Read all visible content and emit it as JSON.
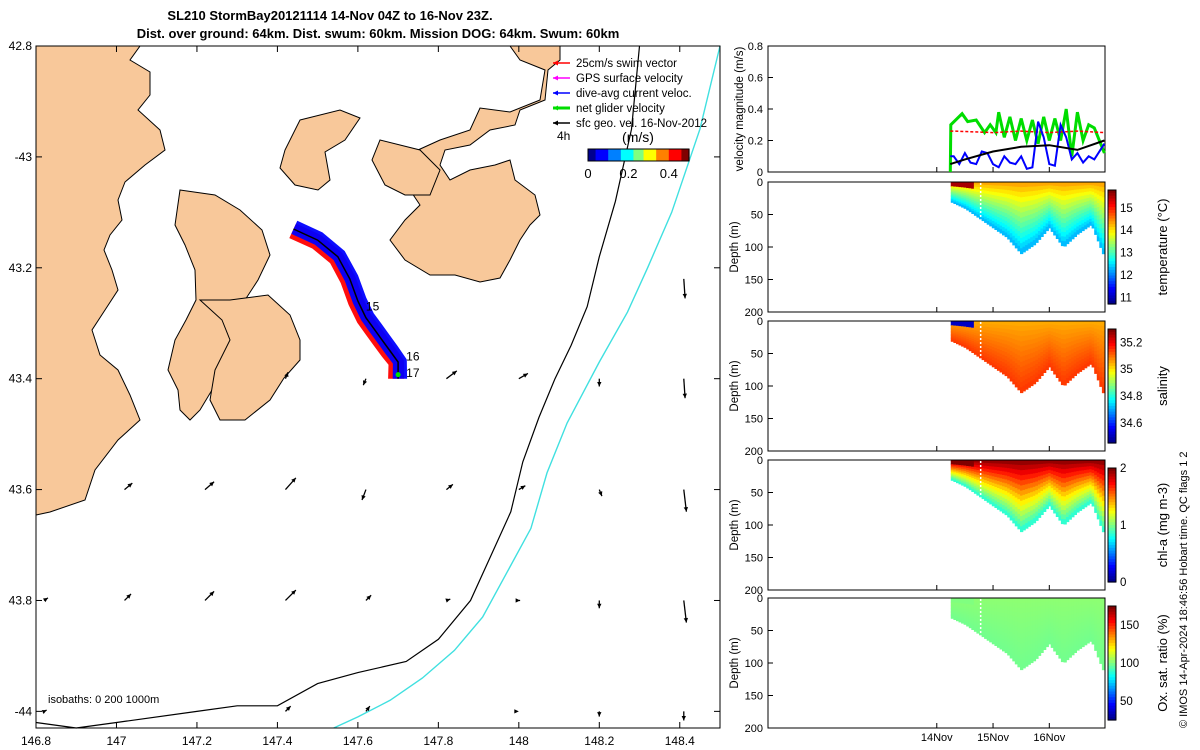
{
  "header": {
    "title_line1": "SL210 StormBay20121114 14-Nov 04Z to 16-Nov 23Z.",
    "title_line2": "Dist. over ground: 64km. Dist. swum: 60km. Mission DOG: 64km. Swum: 60km"
  },
  "colors": {
    "land": "#f8c89a",
    "sea": "#ffffff",
    "track_swim": "#ff0000",
    "track_gps": "#ff00ff",
    "track_current": "#0000ff",
    "track_net": "#00dd00",
    "geo_vector": "#000000",
    "isobath_200": "#000000",
    "isobath_1000": "#40e0e0"
  },
  "chart_data": [
    {
      "type": "scatter",
      "name": "map",
      "xlim": [
        146.8,
        148.5
      ],
      "ylim": [
        -44.03,
        -42.8
      ],
      "x_ticks": [
        146.8,
        147,
        147.2,
        147.4,
        147.6,
        147.8,
        148,
        148.2,
        148.4
      ],
      "x_tick_labels": [
        "146.8",
        "147",
        "147.2",
        "147.4",
        "147.6",
        "147.8",
        "148",
        "148.2",
        "148.4"
      ],
      "y_ticks": [
        -42.8,
        -43,
        -43.2,
        -43.4,
        -43.6,
        -43.8,
        -44
      ],
      "y_tick_labels": [
        "42.8",
        "-43",
        "43.2",
        "43.4",
        "43.6",
        "43.8",
        "-44"
      ],
      "legend": [
        {
          "label": "25cm/s swim vector",
          "color": "#ff0000"
        },
        {
          "label": "GPS surface velocity",
          "color": "#ff00ff"
        },
        {
          "label": "dive-avg current veloc.",
          "color": "#0000ff"
        },
        {
          "label": "net glider velocity",
          "color": "#00dd00"
        },
        {
          "label": "sfc geo. vel. 16-Nov-2012",
          "color": "#000000"
        }
      ],
      "legend_position": "top-right",
      "legend_extra": "4h",
      "colorbar": {
        "label": "(m/s)",
        "ticks": [
          0,
          0.2,
          0.4
        ],
        "tick_labels": [
          "0",
          "0.2",
          "0.4"
        ],
        "range": [
          0,
          0.5
        ]
      },
      "isobath_label": "isobaths: 0   200  1000m",
      "day_labels": [
        {
          "text": "15",
          "lon": 147.61,
          "lat": -43.27
        },
        {
          "text": "16",
          "lon": 147.71,
          "lat": -43.36
        },
        {
          "text": "17",
          "lon": 147.71,
          "lat": -43.39
        }
      ],
      "track": {
        "lon": [
          147.44,
          147.5,
          147.55,
          147.58,
          147.6,
          147.62,
          147.64,
          147.66,
          147.68,
          147.7,
          147.7
        ],
        "lat": [
          -43.13,
          -43.15,
          -43.18,
          -43.22,
          -43.26,
          -43.29,
          -43.31,
          -43.33,
          -43.35,
          -43.37,
          -43.4
        ]
      },
      "isobath_200": {
        "lon": [
          148.3,
          148.28,
          148.24,
          148.2,
          148.17,
          148.13,
          148.09,
          148.05,
          148.01,
          147.98,
          147.93,
          147.88,
          147.8,
          147.72,
          147.6,
          147.5,
          147.4,
          147.3,
          147.2,
          147.0,
          146.9,
          146.8
        ],
        "lat": [
          -42.8,
          -42.95,
          -43.08,
          -43.18,
          -43.27,
          -43.34,
          -43.4,
          -43.47,
          -43.55,
          -43.64,
          -43.72,
          -43.8,
          -43.87,
          -43.91,
          -43.93,
          -43.95,
          -43.99,
          -43.99,
          -44.0,
          -44.02,
          -44.03,
          -44.02
        ]
      },
      "isobath_1000": {
        "lon": [
          148.5,
          148.45,
          148.38,
          148.32,
          148.27,
          148.2,
          148.12,
          148.07,
          148.03,
          147.97,
          147.91,
          147.84,
          147.76,
          147.68,
          147.6,
          147.54
        ],
        "lat": [
          -42.8,
          -42.95,
          -43.1,
          -43.2,
          -43.28,
          -43.37,
          -43.48,
          -43.57,
          -43.67,
          -43.75,
          -43.83,
          -43.89,
          -43.94,
          -43.98,
          -44.01,
          -44.03
        ]
      },
      "geo_vectors": [
        {
          "lon": 148.41,
          "lat": -43.22,
          "u": 0.01,
          "v": -0.15
        },
        {
          "lon": 147.82,
          "lat": -43.4,
          "u": 0.08,
          "v": 0.06
        },
        {
          "lon": 148.0,
          "lat": -43.4,
          "u": 0.07,
          "v": 0.04
        },
        {
          "lon": 148.2,
          "lat": -43.4,
          "u": 0.0,
          "v": -0.06
        },
        {
          "lon": 148.41,
          "lat": -43.4,
          "u": 0.01,
          "v": -0.15
        },
        {
          "lon": 147.42,
          "lat": -43.4,
          "u": 0.02,
          "v": 0.05
        },
        {
          "lon": 147.62,
          "lat": -43.4,
          "u": -0.02,
          "v": -0.05
        },
        {
          "lon": 147.02,
          "lat": -43.6,
          "u": 0.06,
          "v": 0.05
        },
        {
          "lon": 147.22,
          "lat": -43.6,
          "u": 0.07,
          "v": 0.06
        },
        {
          "lon": 147.42,
          "lat": -43.6,
          "u": 0.08,
          "v": 0.09
        },
        {
          "lon": 147.62,
          "lat": -43.6,
          "u": -0.03,
          "v": -0.08
        },
        {
          "lon": 147.82,
          "lat": -43.6,
          "u": 0.05,
          "v": 0.04
        },
        {
          "lon": 148.0,
          "lat": -43.6,
          "u": 0.05,
          "v": 0.03
        },
        {
          "lon": 148.2,
          "lat": -43.6,
          "u": 0.02,
          "v": -0.05
        },
        {
          "lon": 148.41,
          "lat": -43.6,
          "u": 0.02,
          "v": -0.17
        },
        {
          "lon": 146.82,
          "lat": -43.8,
          "u": 0.03,
          "v": 0.02
        },
        {
          "lon": 147.02,
          "lat": -43.8,
          "u": 0.05,
          "v": 0.05
        },
        {
          "lon": 147.22,
          "lat": -43.8,
          "u": 0.07,
          "v": 0.07
        },
        {
          "lon": 147.42,
          "lat": -43.8,
          "u": 0.08,
          "v": 0.08
        },
        {
          "lon": 147.62,
          "lat": -43.8,
          "u": 0.04,
          "v": 0.04
        },
        {
          "lon": 147.82,
          "lat": -43.8,
          "u": 0.03,
          "v": 0.01
        },
        {
          "lon": 148.0,
          "lat": -43.8,
          "u": 0.01,
          "v": 0.0
        },
        {
          "lon": 148.2,
          "lat": -43.8,
          "u": 0.0,
          "v": -0.06
        },
        {
          "lon": 148.41,
          "lat": -43.8,
          "u": 0.02,
          "v": -0.17
        },
        {
          "lon": 146.82,
          "lat": -44.0,
          "u": 0.02,
          "v": 0.01
        },
        {
          "lon": 147.42,
          "lat": -44.0,
          "u": 0.04,
          "v": 0.04
        },
        {
          "lon": 147.62,
          "lat": -44.0,
          "u": 0.03,
          "v": 0.04
        },
        {
          "lon": 148.0,
          "lat": -44.0,
          "u": 0.0,
          "v": 0.0
        },
        {
          "lon": 148.2,
          "lat": -44.0,
          "u": 0.0,
          "v": -0.04
        },
        {
          "lon": 148.41,
          "lat": -44.0,
          "u": 0.0,
          "v": -0.07
        }
      ]
    },
    {
      "type": "line",
      "name": "velocity",
      "ylabel": "velocity magnitude (m/s)",
      "ylim": [
        0,
        0.8
      ],
      "y_ticks": [
        0,
        0.2,
        0.4,
        0.6,
        0.8
      ],
      "y_tick_labels": [
        "0",
        "0.2",
        "0.4",
        "0.6",
        "0.8"
      ],
      "xlim": [
        -3,
        2.99
      ],
      "x_ticks": [
        0,
        1,
        2
      ],
      "x_tick_labels": [
        "14Nov",
        "15Nov",
        "16Nov"
      ],
      "series": [
        {
          "color": "#00dd00",
          "x": [
            0.24,
            0.25,
            0.45,
            0.55,
            0.7,
            0.85,
            0.95,
            1.05,
            1.1,
            1.2,
            1.3,
            1.4,
            1.5,
            1.6,
            1.7,
            1.8,
            1.9,
            2.0,
            2.1,
            2.2,
            2.3,
            2.4,
            2.5,
            2.6,
            2.7,
            2.8,
            2.98
          ],
          "values": [
            0.0,
            0.3,
            0.37,
            0.32,
            0.33,
            0.25,
            0.3,
            0.25,
            0.38,
            0.22,
            0.35,
            0.2,
            0.34,
            0.2,
            0.33,
            0.18,
            0.35,
            0.2,
            0.34,
            0.2,
            0.4,
            0.1,
            0.38,
            0.2,
            0.3,
            0.28,
            0.12
          ]
        },
        {
          "color": "#ff0000",
          "x": [
            0.24,
            0.3,
            1.0,
            1.5,
            2.0,
            2.5,
            2.98
          ],
          "values": [
            0.26,
            0.26,
            0.25,
            0.26,
            0.25,
            0.26,
            0.25
          ]
        },
        {
          "color": "#0000ff",
          "x": [
            0.24,
            0.3,
            0.4,
            0.5,
            0.6,
            0.7,
            0.8,
            0.9,
            1.0,
            1.1,
            1.2,
            1.3,
            1.4,
            1.5,
            1.6,
            1.7,
            1.8,
            1.9,
            2.0,
            2.1,
            2.2,
            2.3,
            2.4,
            2.5,
            2.6,
            2.7,
            2.8,
            2.98
          ],
          "values": [
            0.1,
            0.1,
            0.05,
            0.12,
            0.06,
            0.05,
            0.13,
            0.12,
            0.05,
            0.03,
            0.1,
            0.06,
            0.05,
            0.1,
            0.02,
            0.03,
            0.32,
            0.22,
            0.05,
            0.04,
            0.3,
            0.22,
            0.08,
            0.12,
            0.06,
            0.1,
            0.08,
            0.18
          ]
        },
        {
          "color": "#000000",
          "x": [
            0.24,
            0.5,
            1.0,
            1.5,
            2.0,
            2.5,
            2.98
          ],
          "values": [
            0.05,
            0.08,
            0.13,
            0.16,
            0.17,
            0.14,
            0.2
          ]
        }
      ]
    },
    {
      "type": "heatmap",
      "name": "temperature",
      "ylabel": "Depth (m)",
      "colorbar_label": "temperature (°C)",
      "ylim": [
        200,
        0
      ],
      "y_ticks": [
        0,
        50,
        100,
        150,
        200
      ],
      "y_tick_labels": [
        "0",
        "50",
        "100",
        "150",
        "200"
      ],
      "clim": [
        10.7,
        15.8
      ],
      "cbar_ticks": [
        11,
        12,
        13,
        14,
        15
      ],
      "cbar_tick_labels": [
        "11",
        "12",
        "13",
        "14",
        "15"
      ],
      "section_top_value": 14.4,
      "section_bottom_value": 12.2,
      "surface_value": 15.6
    },
    {
      "type": "heatmap",
      "name": "salinity",
      "ylabel": "Depth (m)",
      "colorbar_label": "salinity",
      "ylim": [
        200,
        0
      ],
      "y_ticks": [
        0,
        50,
        100,
        150,
        200
      ],
      "y_tick_labels": [
        "0",
        "50",
        "100",
        "150",
        "200"
      ],
      "clim": [
        34.45,
        35.3
      ],
      "cbar_ticks": [
        34.6,
        34.8,
        35,
        35.2
      ],
      "cbar_tick_labels": [
        "34.6",
        "34.8",
        "35",
        "35.2"
      ],
      "section_top_value": 35.05,
      "section_bottom_value": 35.15,
      "surface_value": 34.5
    },
    {
      "type": "heatmap",
      "name": "chl-a",
      "ylabel": "Depth (m)",
      "colorbar_label": "chl-a (mg m-3)",
      "ylim": [
        200,
        0
      ],
      "y_ticks": [
        0,
        50,
        100,
        150,
        200
      ],
      "y_tick_labels": [
        "0",
        "50",
        "100",
        "150",
        "200"
      ],
      "clim": [
        0,
        2
      ],
      "cbar_ticks": [
        0,
        1,
        2
      ],
      "cbar_tick_labels": [
        "0",
        "1",
        "2"
      ],
      "section_top_value": 2.0,
      "section_bottom_value": 0.8,
      "surface_value": 2.0
    },
    {
      "type": "heatmap",
      "name": "oxygen",
      "ylabel": "Depth (m)",
      "colorbar_label": "Ox. sat. ratio (%)",
      "ylim": [
        200,
        0
      ],
      "y_ticks": [
        0,
        50,
        100,
        150,
        200
      ],
      "y_tick_labels": [
        "0",
        "50",
        "100",
        "150",
        "200"
      ],
      "clim": [
        25,
        175
      ],
      "cbar_ticks": [
        50,
        100,
        150
      ],
      "cbar_tick_labels": [
        "50",
        "100",
        "150"
      ],
      "section_top_value": 102,
      "section_bottom_value": 98,
      "surface_value": 100
    }
  ],
  "section_bottom_profile": {
    "time_days": [
      0.25,
      0.5,
      0.75,
      1.0,
      1.25,
      1.5,
      1.75,
      2.0,
      2.25,
      2.5,
      2.75,
      2.98
    ],
    "depth_m": [
      30,
      40,
      55,
      70,
      85,
      110,
      95,
      70,
      100,
      80,
      65,
      115
    ]
  },
  "credit": "© IMOS 14-Apr-2024 18:46:56 Hobart time. QC flags 1  2"
}
